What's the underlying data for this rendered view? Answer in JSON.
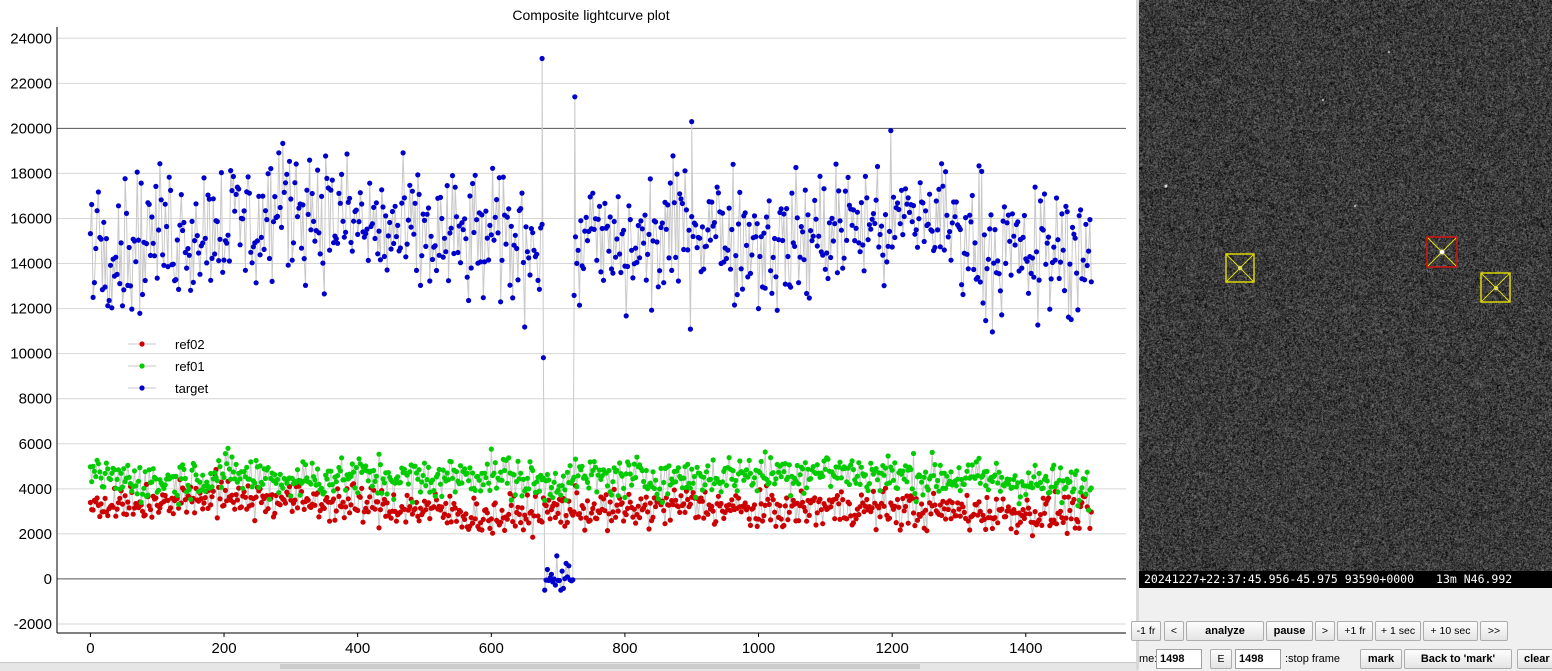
{
  "chart_data": {
    "type": "scatter",
    "title": "Composite lightcurve plot",
    "xlabel": "",
    "ylabel": "",
    "xlim": [
      -50,
      1550
    ],
    "ylim": [
      -2400,
      24500
    ],
    "x_ticks": [
      0,
      200,
      400,
      600,
      800,
      1000,
      1200,
      1400
    ],
    "y_ticks": [
      -2000,
      0,
      2000,
      4000,
      6000,
      8000,
      10000,
      12000,
      14000,
      16000,
      18000,
      20000,
      22000,
      24000
    ],
    "grid": true,
    "legend_position": "left-middle",
    "connected_lines": true,
    "series": [
      {
        "name": "ref02",
        "color": "#cc0000",
        "points": [
          [
            0,
            3200
          ],
          [
            100,
            3400
          ],
          [
            200,
            3700
          ],
          [
            300,
            3500
          ],
          [
            400,
            3300
          ],
          [
            500,
            3100
          ],
          [
            600,
            2700
          ],
          [
            680,
            3000
          ],
          [
            720,
            3100
          ],
          [
            800,
            3000
          ],
          [
            900,
            3300
          ],
          [
            1000,
            3000
          ],
          [
            1100,
            3200
          ],
          [
            1200,
            3100
          ],
          [
            1300,
            3000
          ],
          [
            1400,
            2900
          ],
          [
            1498,
            2900
          ]
        ]
      },
      {
        "name": "ref01",
        "color": "#00cc00",
        "points": [
          [
            0,
            4600
          ],
          [
            100,
            4300
          ],
          [
            200,
            4700
          ],
          [
            300,
            4400
          ],
          [
            400,
            4600
          ],
          [
            500,
            4400
          ],
          [
            600,
            4700
          ],
          [
            680,
            4200
          ],
          [
            720,
            4500
          ],
          [
            800,
            4500
          ],
          [
            900,
            4500
          ],
          [
            1000,
            4700
          ],
          [
            1100,
            4800
          ],
          [
            1200,
            4600
          ],
          [
            1300,
            4500
          ],
          [
            1400,
            4300
          ],
          [
            1498,
            4000
          ]
        ]
      },
      {
        "name": "target",
        "color": "#0000cc",
        "points": [
          [
            0,
            15600
          ],
          [
            50,
            14800
          ],
          [
            100,
            15300
          ],
          [
            150,
            15500
          ],
          [
            200,
            16000
          ],
          [
            250,
            15600
          ],
          [
            300,
            16800
          ],
          [
            350,
            16300
          ],
          [
            400,
            15700
          ],
          [
            450,
            15300
          ],
          [
            500,
            15200
          ],
          [
            550,
            15000
          ],
          [
            600,
            15000
          ],
          [
            650,
            14900
          ],
          [
            675,
            15500
          ],
          [
            680,
            7200
          ],
          [
            685,
            200
          ],
          [
            700,
            0
          ],
          [
            720,
            300
          ],
          [
            725,
            21400
          ],
          [
            730,
            15000
          ],
          [
            750,
            15000
          ],
          [
            800,
            14500
          ],
          [
            850,
            15000
          ],
          [
            900,
            15800
          ],
          [
            950,
            15500
          ],
          [
            1000,
            15000
          ],
          [
            1050,
            14800
          ],
          [
            1100,
            15500
          ],
          [
            1150,
            15800
          ],
          [
            1200,
            15700
          ],
          [
            1250,
            16200
          ],
          [
            1300,
            15500
          ],
          [
            1350,
            14700
          ],
          [
            1400,
            14200
          ],
          [
            1450,
            14500
          ],
          [
            1498,
            14900
          ]
        ],
        "noted_extremes": [
          [
            676,
            23100
          ],
          [
            725,
            21400
          ],
          [
            900,
            20300
          ]
        ]
      }
    ]
  },
  "image_viewer": {
    "timestamp": "20241227+22:37:45.956-45.975 93590+0000",
    "suffix": "13m N46.992",
    "apertures": [
      {
        "role": "ref01",
        "color": "#e8e000"
      },
      {
        "role": "target",
        "color": "#e01010"
      },
      {
        "role": "ref02",
        "color": "#e8e000"
      }
    ]
  },
  "controls": {
    "back1": "-1 fr",
    "prev": "<",
    "analyze": "analyze",
    "pause": "pause",
    "next": ">",
    "fwd1": "+1 fr",
    "fwd1s": "+ 1 sec",
    "fwd10s": "+ 10 sec",
    "end": ">>",
    "frame_label": "me:",
    "frame_value": "1498",
    "e_label": "E",
    "stop_value": "1498",
    "stop_label": ":stop frame",
    "mark": "mark",
    "back_to_mark": "Back to 'mark'",
    "clear": "clear"
  }
}
